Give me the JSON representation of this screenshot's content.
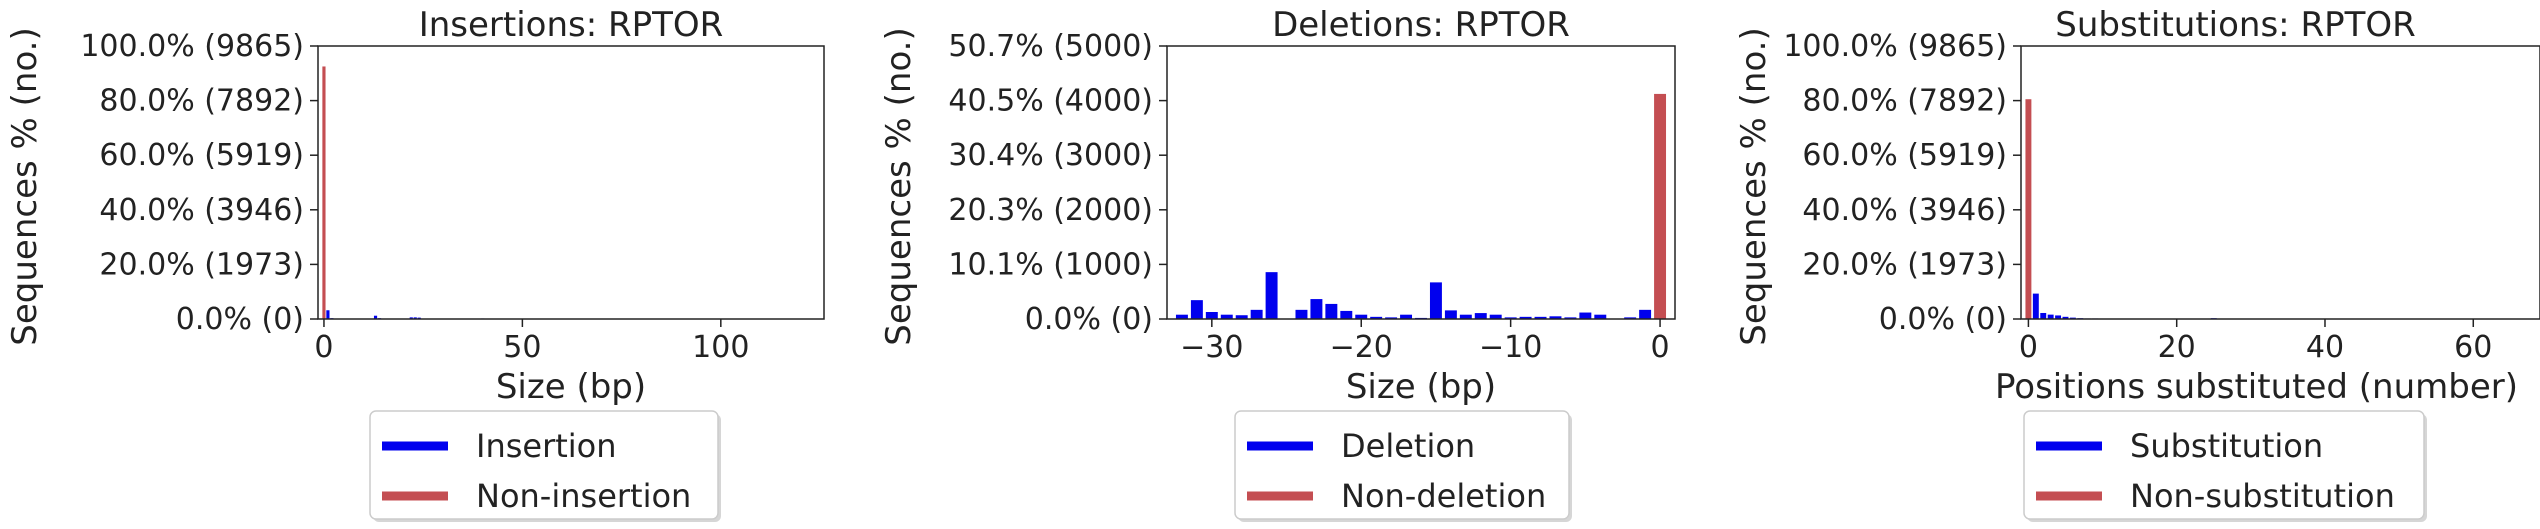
{
  "colors": {
    "primary": "#0000ee",
    "secondary": "#c44e52",
    "axis": "#222222"
  },
  "chart_data": [
    {
      "type": "bar",
      "title": "Insertions: RPTOR",
      "xlabel": "Size (bp)",
      "ylabel": "Sequences % (no.)",
      "xlim": [
        -1.5,
        126
      ],
      "ylim": [
        0,
        100
      ],
      "xticks": [
        0,
        50,
        100
      ],
      "yticks": [
        "0.0% (0)",
        "20.0% (1973)",
        "40.0% (3946)",
        "60.0% (5919)",
        "80.0% (7892)",
        "100.0% (9865)"
      ],
      "bar_width": 0.8,
      "series": [
        {
          "name": "Insertion",
          "color": "#0000ee",
          "x": [
            1,
            2,
            13,
            14,
            22,
            23,
            24,
            40
          ],
          "values": [
            3.2,
            0.3,
            1.2,
            0.3,
            0.6,
            0.6,
            0.5,
            0.2
          ]
        },
        {
          "name": "Non-insertion",
          "color": "#c44e52",
          "x": [
            0
          ],
          "values": [
            92.5
          ]
        }
      ],
      "legend": [
        "Insertion",
        "Non-insertion"
      ],
      "legend_position": "below"
    },
    {
      "type": "bar",
      "title": "Deletions: RPTOR",
      "xlabel": "Size (bp)",
      "ylabel": "Sequences % (no.)",
      "xlim": [
        -33,
        1
      ],
      "ylim": [
        0,
        50.7
      ],
      "xticks": [
        -30,
        -20,
        -10,
        0
      ],
      "yticks": [
        "0.0% (0)",
        "10.1% (1000)",
        "20.3% (2000)",
        "30.4% (3000)",
        "40.5% (4000)",
        "50.7% (5000)"
      ],
      "bar_width": 0.8,
      "series": [
        {
          "name": "Deletion",
          "color": "#0000ee",
          "x": [
            -32,
            -31,
            -30,
            -29,
            -28,
            -27,
            -26,
            -24,
            -23,
            -22,
            -21,
            -20,
            -19,
            -18,
            -17,
            -16,
            -15,
            -14,
            -13,
            -12,
            -11,
            -10,
            -9,
            -8,
            -7,
            -6,
            -5,
            -4,
            -2,
            -1
          ],
          "values": [
            0.8,
            3.5,
            1.3,
            0.8,
            0.7,
            1.7,
            8.7,
            1.7,
            3.7,
            2.8,
            1.5,
            0.8,
            0.4,
            0.3,
            0.8,
            0.2,
            6.8,
            1.6,
            0.8,
            1.1,
            0.8,
            0.3,
            0.4,
            0.4,
            0.5,
            0.3,
            1.2,
            0.8,
            0.3,
            1.7
          ]
        },
        {
          "name": "Non-deletion",
          "color": "#c44e52",
          "x": [
            0
          ],
          "values": [
            41.8
          ]
        }
      ],
      "legend": [
        "Deletion",
        "Non-deletion"
      ],
      "legend_position": "below"
    },
    {
      "type": "bar",
      "title": "Substitutions: RPTOR",
      "xlabel": "Positions substituted (number)",
      "ylabel": "Sequences % (no.)",
      "xlim": [
        -1,
        69
      ],
      "ylim": [
        0,
        100
      ],
      "xticks": [
        0,
        20,
        40,
        60
      ],
      "yticks": [
        "0.0% (0)",
        "20.0% (1973)",
        "40.0% (3946)",
        "60.0% (5919)",
        "80.0% (7892)",
        "100.0% (9865)"
      ],
      "bar_width": 0.8,
      "series": [
        {
          "name": "Substitution",
          "color": "#0000ee",
          "x": [
            1,
            2,
            3,
            4,
            5,
            6,
            7,
            8,
            9,
            10,
            25
          ],
          "values": [
            9.3,
            2.2,
            1.6,
            1.3,
            0.8,
            0.5,
            0.3,
            0.2,
            0.2,
            0.1,
            0.3
          ]
        },
        {
          "name": "Non-substitution",
          "color": "#c44e52",
          "x": [
            0
          ],
          "values": [
            80.5
          ]
        }
      ],
      "legend": [
        "Substitution",
        "Non-substitution"
      ],
      "legend_position": "below"
    }
  ]
}
